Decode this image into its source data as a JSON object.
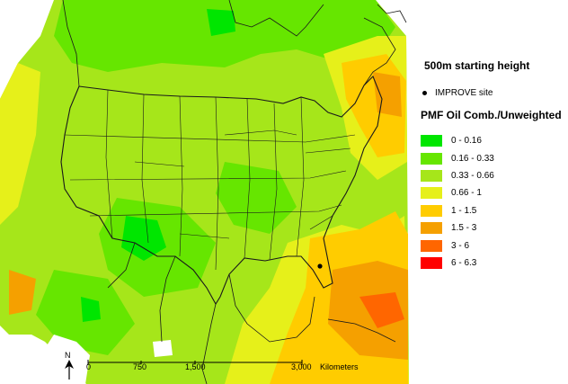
{
  "map": {
    "title": "500m starting height",
    "site_legend": "IMPROVE site",
    "legend_title": "PMF Oil Comb./Unweighted",
    "legend": [
      {
        "label": "0 - 0.16",
        "color": "#00e600"
      },
      {
        "label": "0.16 - 0.33",
        "color": "#66e600"
      },
      {
        "label": "0.33 - 0.66",
        "color": "#a6e61a"
      },
      {
        "label": "0.66 - 1",
        "color": "#e6f01a"
      },
      {
        "label": "1 - 1.5",
        "color": "#ffcc00"
      },
      {
        "label": "1.5 - 3",
        "color": "#f5a000"
      },
      {
        "label": "3 - 6",
        "color": "#ff6600"
      },
      {
        "label": "6 - 6.3",
        "color": "#ff0000"
      }
    ],
    "scale": {
      "ticks": [
        "0",
        "750",
        "1,500",
        "3,000"
      ],
      "unit": "Kilometers"
    },
    "north_label": "N",
    "site_color": "#000000",
    "water_color": "#ffffff"
  }
}
